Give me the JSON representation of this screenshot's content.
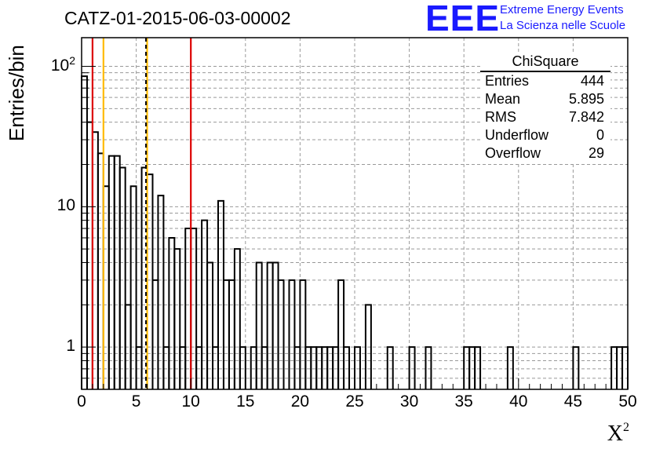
{
  "title": "CATZ-01-2015-06-03-00002",
  "logo": {
    "mark": "EEE",
    "line1": "Extreme Energy Events",
    "line2": "La Scienza nelle Scuole",
    "color": "#1a1aff"
  },
  "stats": {
    "title": "ChiSquare",
    "rows": [
      {
        "label": "Entries",
        "value": "444"
      },
      {
        "label": "Mean",
        "value": "5.895"
      },
      {
        "label": "RMS",
        "value": "7.842"
      },
      {
        "label": "Underflow",
        "value": "0"
      },
      {
        "label": "Overflow",
        "value": "29"
      }
    ]
  },
  "chart_data": {
    "type": "bar",
    "histogram": "step",
    "xlabel": "X",
    "xlabel_superscript": "2",
    "ylabel": "Entries/bin",
    "xlim": [
      0,
      50
    ],
    "ylim": [
      0.5,
      160
    ],
    "yscale": "log",
    "grid": true,
    "bin_width": 0.5,
    "x_ticks": [
      "0",
      "5",
      "10",
      "15",
      "20",
      "25",
      "30",
      "35",
      "40",
      "45",
      "50"
    ],
    "y_ticks": [
      {
        "value": 1,
        "label": "1"
      },
      {
        "value": 10,
        "label": "10"
      },
      {
        "value": 100,
        "label": "10",
        "exp": "2"
      }
    ],
    "bins": [
      [
        0.0,
        85
      ],
      [
        0.5,
        40
      ],
      [
        1.0,
        34
      ],
      [
        1.5,
        24
      ],
      [
        2.0,
        14
      ],
      [
        2.5,
        23
      ],
      [
        3.0,
        23
      ],
      [
        3.5,
        19
      ],
      [
        4.0,
        2
      ],
      [
        4.5,
        14
      ],
      [
        5.0,
        1
      ],
      [
        5.5,
        19
      ],
      [
        6.0,
        17
      ],
      [
        6.5,
        3
      ],
      [
        7.0,
        12
      ],
      [
        7.5,
        1
      ],
      [
        8.0,
        6
      ],
      [
        8.5,
        5
      ],
      [
        9.0,
        1
      ],
      [
        9.5,
        7
      ],
      [
        10.0,
        7
      ],
      [
        10.5,
        1
      ],
      [
        11.0,
        8
      ],
      [
        11.5,
        4
      ],
      [
        12.0,
        1
      ],
      [
        12.5,
        11
      ],
      [
        13.0,
        3
      ],
      [
        13.5,
        3
      ],
      [
        14.0,
        5
      ],
      [
        14.5,
        1
      ],
      [
        15.0,
        0
      ],
      [
        15.5,
        1
      ],
      [
        16.0,
        4
      ],
      [
        16.5,
        1
      ],
      [
        17.0,
        4
      ],
      [
        17.5,
        4
      ],
      [
        18.0,
        3
      ],
      [
        18.5,
        0
      ],
      [
        19.0,
        3
      ],
      [
        19.5,
        1
      ],
      [
        20.0,
        3
      ],
      [
        20.5,
        1
      ],
      [
        21.0,
        1
      ],
      [
        21.5,
        1
      ],
      [
        22.0,
        1
      ],
      [
        22.5,
        1
      ],
      [
        23.0,
        1
      ],
      [
        23.5,
        3
      ],
      [
        24.0,
        1
      ],
      [
        24.5,
        0
      ],
      [
        25.0,
        1
      ],
      [
        25.5,
        0
      ],
      [
        26.0,
        2
      ],
      [
        26.5,
        0
      ],
      [
        27.0,
        0
      ],
      [
        27.5,
        0
      ],
      [
        28.0,
        1
      ],
      [
        28.5,
        0
      ],
      [
        29.0,
        0
      ],
      [
        29.5,
        0
      ],
      [
        30.0,
        1
      ],
      [
        30.5,
        0
      ],
      [
        31.0,
        0
      ],
      [
        31.5,
        1
      ],
      [
        32.0,
        0
      ],
      [
        32.5,
        0
      ],
      [
        33.0,
        0
      ],
      [
        33.5,
        0
      ],
      [
        34.0,
        0
      ],
      [
        34.5,
        0
      ],
      [
        35.0,
        1
      ],
      [
        35.5,
        1
      ],
      [
        36.0,
        1
      ],
      [
        36.5,
        0
      ],
      [
        37.0,
        0
      ],
      [
        37.5,
        0
      ],
      [
        38.0,
        0
      ],
      [
        38.5,
        0
      ],
      [
        39.0,
        1
      ],
      [
        39.5,
        0
      ],
      [
        40.0,
        0
      ],
      [
        40.5,
        0
      ],
      [
        41.0,
        0
      ],
      [
        41.5,
        0
      ],
      [
        42.0,
        0
      ],
      [
        42.5,
        0
      ],
      [
        43.0,
        0
      ],
      [
        43.5,
        0
      ],
      [
        44.0,
        0
      ],
      [
        44.5,
        0
      ],
      [
        45.0,
        1
      ],
      [
        45.5,
        0
      ],
      [
        46.0,
        0
      ],
      [
        46.5,
        0
      ],
      [
        47.0,
        0
      ],
      [
        47.5,
        0
      ],
      [
        48.0,
        0
      ],
      [
        48.5,
        1
      ],
      [
        49.0,
        1
      ],
      [
        49.5,
        1
      ]
    ],
    "annotations": [
      {
        "type": "vline",
        "x": 1,
        "color": "#dd0000",
        "style": "solid"
      },
      {
        "type": "vline",
        "x": 2,
        "color": "#ffbb00",
        "style": "solid"
      },
      {
        "type": "vline",
        "x": 6,
        "color": "#ffbb00",
        "style": "solid"
      },
      {
        "type": "vline",
        "x": 5.895,
        "color": "#000000",
        "style": "dashed"
      },
      {
        "type": "vline",
        "x": 10,
        "color": "#dd0000",
        "style": "solid"
      }
    ]
  }
}
